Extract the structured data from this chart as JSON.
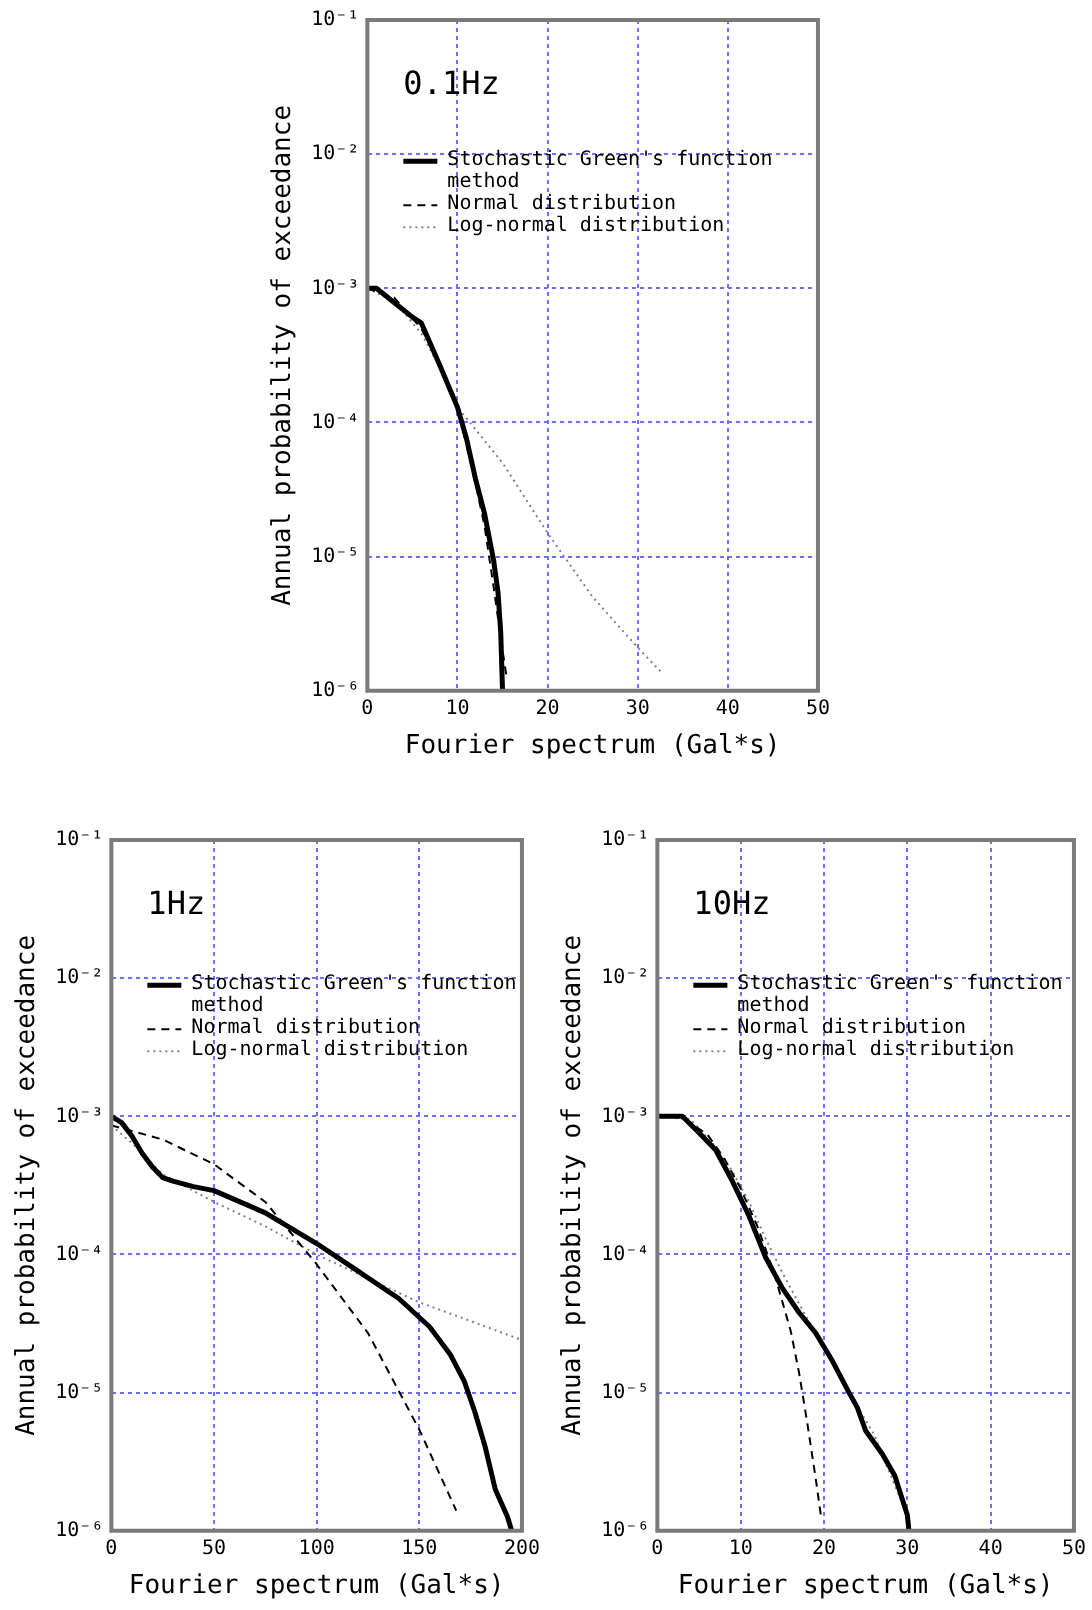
{
  "chart_data": [
    {
      "type": "line",
      "annotations": [
        "0.1Hz"
      ],
      "xlabel": "Fourier spectrum (Gal*s)",
      "ylabel": "Annual probability of exceedance",
      "xlim": [
        0,
        50
      ],
      "xticks": [
        0,
        10,
        20,
        30,
        40,
        50
      ],
      "ylim": [
        1e-06,
        0.1
      ],
      "yticks": [
        {
          "value": 0.1,
          "label": "10⁻¹"
        },
        {
          "value": 0.01,
          "label": "10⁻²"
        },
        {
          "value": 0.001,
          "label": "10⁻³"
        },
        {
          "value": 0.0001,
          "label": "10⁻⁴"
        },
        {
          "value": 1e-05,
          "label": "10⁻⁵"
        },
        {
          "value": 1e-06,
          "label": "10⁻⁶"
        }
      ],
      "log": "y",
      "grid": true,
      "legend": "top left",
      "marker": "none",
      "series": [
        {
          "name": "Stochastic Green's function method",
          "color": "#000000",
          "line_style": "solid",
          "x": [
            0,
            1,
            3,
            5,
            6,
            8,
            10,
            11,
            12,
            13,
            14,
            14.5,
            14.8,
            15
          ],
          "values": [
            0.001,
            0.001,
            0.00078,
            0.00061,
            0.00055,
            0.00027,
            0.00013,
            7.6e-05,
            3.8e-05,
            2.1e-05,
            9.5e-06,
            5.4e-06,
            2.7e-06,
            1e-06
          ]
        },
        {
          "name": "Normal distribution",
          "color": "#000000",
          "line_style": "dashed",
          "x": [
            0,
            3,
            6,
            8,
            10,
            12,
            13,
            14,
            15,
            15.5
          ],
          "values": [
            0.001,
            0.00085,
            0.0005,
            0.00028,
            0.00013,
            3.5e-05,
            1.7e-05,
            6e-06,
            2e-06,
            1.2e-06
          ]
        },
        {
          "name": "Log-normal distribution",
          "color": "#808080",
          "line_style": "dotted",
          "x": [
            0,
            3,
            6,
            8,
            10,
            15,
            20,
            25,
            30,
            32.5
          ],
          "values": [
            0.001,
            0.0008,
            0.00046,
            0.00026,
            0.00013,
            5e-05,
            1.5e-05,
            5e-06,
            2.1e-06,
            1.4e-06
          ]
        }
      ]
    },
    {
      "type": "line",
      "annotations": [
        "1Hz"
      ],
      "xlabel": "Fourier spectrum (Gal*s)",
      "ylabel": "Annual probability of exceedance",
      "xlim": [
        0,
        200
      ],
      "xticks": [
        0,
        50,
        100,
        150,
        200
      ],
      "ylim": [
        1e-06,
        0.1
      ],
      "yticks": [
        {
          "value": 0.1,
          "label": "10⁻¹"
        },
        {
          "value": 0.01,
          "label": "10⁻²"
        },
        {
          "value": 0.001,
          "label": "10⁻³"
        },
        {
          "value": 0.0001,
          "label": "10⁻⁴"
        },
        {
          "value": 1e-05,
          "label": "10⁻⁵"
        },
        {
          "value": 1e-06,
          "label": "10⁻⁶"
        }
      ],
      "log": "y",
      "grid": true,
      "legend": "top left",
      "marker": "none",
      "series": [
        {
          "name": "Stochastic Green's function method",
          "color": "#000000",
          "line_style": "solid",
          "x": [
            0,
            5,
            10,
            15,
            20,
            25,
            30,
            40,
            50,
            75,
            100,
            120,
            140,
            155,
            165,
            172,
            177,
            182,
            187,
            193,
            195
          ],
          "values": [
            0.001,
            0.0009,
            0.00072,
            0.00054,
            0.00043,
            0.00036,
            0.00034,
            0.00031,
            0.00029,
            0.0002,
            0.00012,
            7.6e-05,
            4.8e-05,
            3e-05,
            1.9e-05,
            1.2e-05,
            7.3e-06,
            4.1e-06,
            2e-06,
            1.26e-06,
            1e-06
          ]
        },
        {
          "name": "Normal distribution",
          "color": "#000000",
          "line_style": "dashed",
          "x": [
            0,
            25,
            50,
            75,
            100,
            125,
            150,
            168
          ],
          "values": [
            0.00086,
            0.00068,
            0.00045,
            0.00024,
            8.5e-05,
            2.7e-05,
            5.4e-06,
            1.4e-06
          ]
        },
        {
          "name": "Log-normal distribution",
          "color": "#808080",
          "line_style": "dotted",
          "x": [
            0,
            10,
            25,
            50,
            75,
            100,
            125,
            150,
            175,
            200
          ],
          "values": [
            0.00086,
            0.00064,
            0.00038,
            0.00024,
            0.00016,
            0.0001,
            6.7e-05,
            4.5e-05,
            3.3e-05,
            2.4e-05
          ]
        }
      ]
    },
    {
      "type": "line",
      "annotations": [
        "10Hz"
      ],
      "xlabel": "Fourier spectrum (Gal*s)",
      "ylabel": "Annual probability of exceedance",
      "xlim": [
        0,
        50
      ],
      "xticks": [
        0,
        10,
        20,
        30,
        40,
        50
      ],
      "ylim": [
        1e-06,
        0.1
      ],
      "yticks": [
        {
          "value": 0.1,
          "label": "10⁻¹"
        },
        {
          "value": 0.01,
          "label": "10⁻²"
        },
        {
          "value": 0.001,
          "label": "10⁻³"
        },
        {
          "value": 0.0001,
          "label": "10⁻⁴"
        },
        {
          "value": 1e-05,
          "label": "10⁻⁵"
        },
        {
          "value": 1e-06,
          "label": "10⁻⁶"
        }
      ],
      "log": "y",
      "grid": true,
      "legend": "top left",
      "marker": "none",
      "series": [
        {
          "name": "Stochastic Green's function method",
          "color": "#000000",
          "line_style": "solid",
          "x": [
            0,
            3,
            5,
            7,
            9,
            11,
            13,
            15,
            17,
            19,
            21,
            23,
            24,
            25,
            27,
            28.5,
            30,
            30.2
          ],
          "values": [
            0.001,
            0.001,
            0.00076,
            0.00057,
            0.00034,
            0.00019,
            9.5e-05,
            5.7e-05,
            3.8e-05,
            2.7e-05,
            1.7e-05,
            1e-05,
            7.8e-06,
            5.3e-06,
            3.6e-06,
            2.5e-06,
            1.3e-06,
            1e-06
          ]
        },
        {
          "name": "Normal distribution",
          "color": "#000000",
          "line_style": "dashed",
          "x": [
            0,
            3,
            6,
            8,
            10,
            12,
            14,
            16,
            17,
            18,
            19,
            19.7
          ],
          "values": [
            0.001,
            0.00098,
            0.00074,
            0.0005,
            0.0003,
            0.00016,
            7.4e-05,
            2.8e-05,
            1.4e-05,
            6e-06,
            2.4e-06,
            1.2e-06
          ]
        },
        {
          "name": "Log-normal distribution",
          "color": "#808080",
          "line_style": "dotted",
          "x": [
            0,
            4,
            7,
            9,
            11,
            13,
            15,
            17,
            20,
            23,
            26,
            29,
            30
          ],
          "values": [
            0.001,
            0.00095,
            0.0006,
            0.0004,
            0.00024,
            0.00013,
            7.4e-05,
            4.4e-05,
            2.1e-05,
            1e-05,
            5e-06,
            1.8e-06,
            1.3e-06
          ]
        }
      ]
    }
  ]
}
